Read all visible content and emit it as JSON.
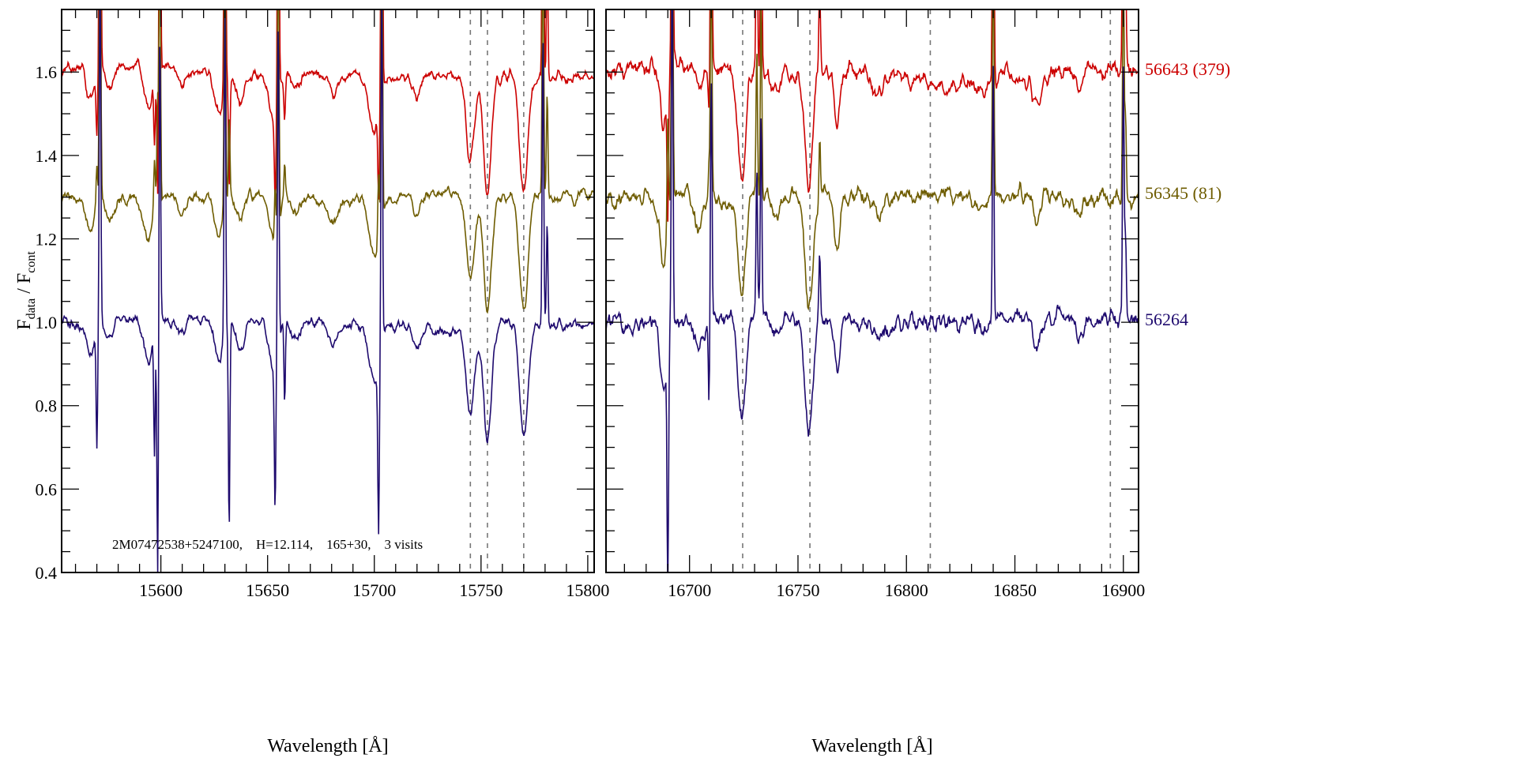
{
  "chart_data": {
    "type": "line",
    "ylabel": {
      "main1": "F",
      "sub1": "data",
      "sep": " / F",
      "sub2": "cont"
    },
    "ylim": [
      0.4,
      1.75
    ],
    "yticks": [
      "0.4",
      "0.6",
      "0.8",
      "1.0",
      "1.2",
      "1.4",
      "1.6"
    ],
    "annotation": "2M07472538+5247100,    H=12.114,    165+30,    3 visits",
    "panels": [
      {
        "xlabel": "Wavelength [Å]",
        "xlim": [
          15553.5,
          15803
        ],
        "xticks": [
          "15600",
          "15650",
          "15700",
          "15750",
          "15800"
        ],
        "dashed_lines": [
          15745,
          15753,
          15770
        ],
        "absorption": [
          [
            15567,
            0.08,
            2
          ],
          [
            15576,
            0.05,
            2
          ],
          [
            15594,
            0.1,
            2
          ],
          [
            15610,
            0.04,
            2
          ],
          [
            15627,
            0.1,
            2
          ],
          [
            15637,
            0.06,
            2
          ],
          [
            15653,
            0.12,
            2
          ],
          [
            15663,
            0.04,
            2
          ],
          [
            15681,
            0.05,
            2
          ],
          [
            15700,
            0.13,
            2.5
          ],
          [
            15720,
            0.05,
            2
          ],
          [
            15745,
            0.2,
            2
          ],
          [
            15753,
            0.28,
            1.8
          ],
          [
            15770,
            0.28,
            2
          ]
        ],
        "spikes": [
          [
            15570,
            -0.28
          ],
          [
            15571.5,
            0.9
          ],
          [
            15597,
            -0.3
          ],
          [
            15598.5,
            -0.6
          ],
          [
            15599.5,
            0.7
          ],
          [
            15632,
            -0.5
          ],
          [
            15630,
            0.8
          ],
          [
            15653.5,
            -0.35
          ],
          [
            15655,
            0.8
          ],
          [
            15658,
            -0.2
          ],
          [
            15702,
            -0.4
          ],
          [
            15703.5,
            0.9
          ],
          [
            15781,
            0.25
          ],
          [
            15779,
            0.7
          ]
        ]
      },
      {
        "xlabel": "Wavelength [Å]",
        "xlim": [
          16661.5,
          16907
        ],
        "xticks": [
          "16700",
          "16750",
          "16800",
          "16850",
          "16900"
        ],
        "dashed_lines": [
          16724.5,
          16755.5,
          16811,
          16894
        ],
        "absorption": [
          [
            16688,
            0.15,
            1.5
          ],
          [
            16704,
            0.06,
            2
          ],
          [
            16724,
            0.25,
            1.8
          ],
          [
            16740,
            0.05,
            2
          ],
          [
            16755,
            0.28,
            1.8
          ],
          [
            16768,
            0.12,
            1.5
          ],
          [
            16787,
            0.05,
            2
          ],
          [
            16835,
            0.04,
            2
          ],
          [
            16860,
            0.06,
            2
          ],
          [
            16880,
            0.04,
            2
          ]
        ],
        "spikes": [
          [
            16690,
            -0.6
          ],
          [
            16692,
            0.9
          ],
          [
            16709,
            -0.2
          ],
          [
            16710,
            0.6
          ],
          [
            16731,
            0.35
          ],
          [
            16733,
            0.5
          ],
          [
            16760,
            0.15
          ],
          [
            16840,
            0.6
          ],
          [
            16900,
            0.6
          ],
          [
            16901,
            0.2
          ]
        ]
      }
    ],
    "series": [
      {
        "name": "56643 (379)",
        "offset": 0.6,
        "color": "#cc0000",
        "seed": 11
      },
      {
        "name": "56345 (81)",
        "offset": 0.3,
        "color": "#6e5c00",
        "seed": 23
      },
      {
        "name": "56264",
        "offset": 0.0,
        "color": "#1e0a6e",
        "seed": 37
      }
    ]
  }
}
